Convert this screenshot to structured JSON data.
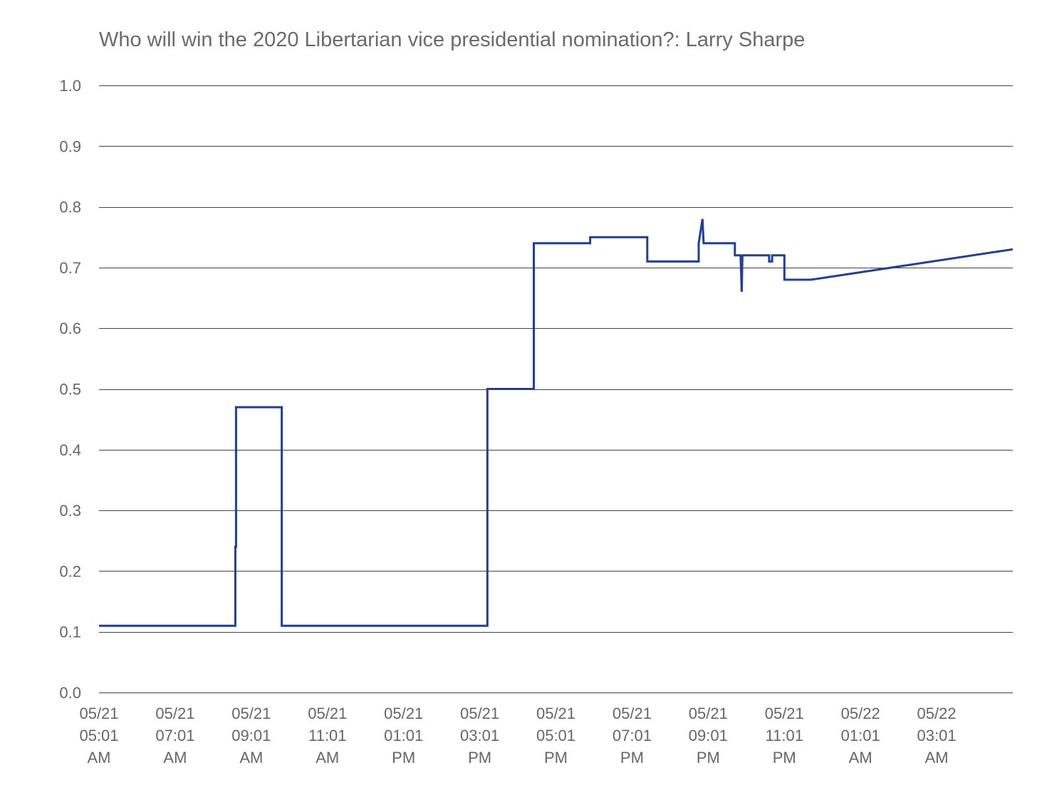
{
  "chart_data": {
    "type": "line",
    "title": "Who will win the 2020 Libertarian vice presidential nomination?: Larry Sharpe",
    "xlabel": "",
    "ylabel": "",
    "ylim": [
      0.0,
      1.0
    ],
    "yticks": [
      "0.0",
      "0.1",
      "0.2",
      "0.3",
      "0.4",
      "0.5",
      "0.6",
      "0.7",
      "0.8",
      "0.9",
      "1.0"
    ],
    "x_unit": "hours after 05/21 05:01 AM",
    "xlim": [
      0,
      24.0
    ],
    "xtick_positions": [
      0,
      2,
      4,
      6,
      8,
      10,
      12,
      14,
      16,
      18,
      20,
      22
    ],
    "xticks": [
      [
        "05/21",
        "05:01",
        "AM"
      ],
      [
        "05/21",
        "07:01",
        "AM"
      ],
      [
        "05/21",
        "09:01",
        "AM"
      ],
      [
        "05/21",
        "11:01",
        "AM"
      ],
      [
        "05/21",
        "01:01",
        "PM"
      ],
      [
        "05/21",
        "03:01",
        "PM"
      ],
      [
        "05/21",
        "05:01",
        "PM"
      ],
      [
        "05/21",
        "07:01",
        "PM"
      ],
      [
        "05/21",
        "09:01",
        "PM"
      ],
      [
        "05/21",
        "11:01",
        "PM"
      ],
      [
        "05/22",
        "01:01",
        "AM"
      ],
      [
        "05/22",
        "03:01",
        "AM"
      ]
    ],
    "grid": true,
    "legend": "none",
    "series": [
      {
        "color": "#1f3f99",
        "x": [
          0.0,
          3.58,
          3.58,
          3.6,
          3.6,
          4.8,
          4.8,
          10.2,
          10.2,
          11.42,
          11.42,
          12.9,
          12.9,
          14.4,
          14.4,
          15.75,
          15.75,
          15.85,
          15.88,
          15.92,
          15.95,
          16.7,
          16.7,
          16.85,
          16.88,
          16.9,
          16.9,
          17.6,
          17.6,
          17.68,
          17.68,
          17.85,
          17.85,
          18.0,
          18.0,
          18.7,
          18.7,
          24.0
        ],
        "y": [
          0.11,
          0.11,
          0.24,
          0.24,
          0.47,
          0.47,
          0.11,
          0.11,
          0.5,
          0.5,
          0.74,
          0.74,
          0.75,
          0.75,
          0.71,
          0.71,
          0.74,
          0.78,
          0.74,
          0.74,
          0.74,
          0.74,
          0.72,
          0.72,
          0.66,
          0.72,
          0.72,
          0.72,
          0.71,
          0.71,
          0.72,
          0.72,
          0.72,
          0.72,
          0.68,
          0.68,
          0.68,
          0.73
        ]
      }
    ]
  }
}
